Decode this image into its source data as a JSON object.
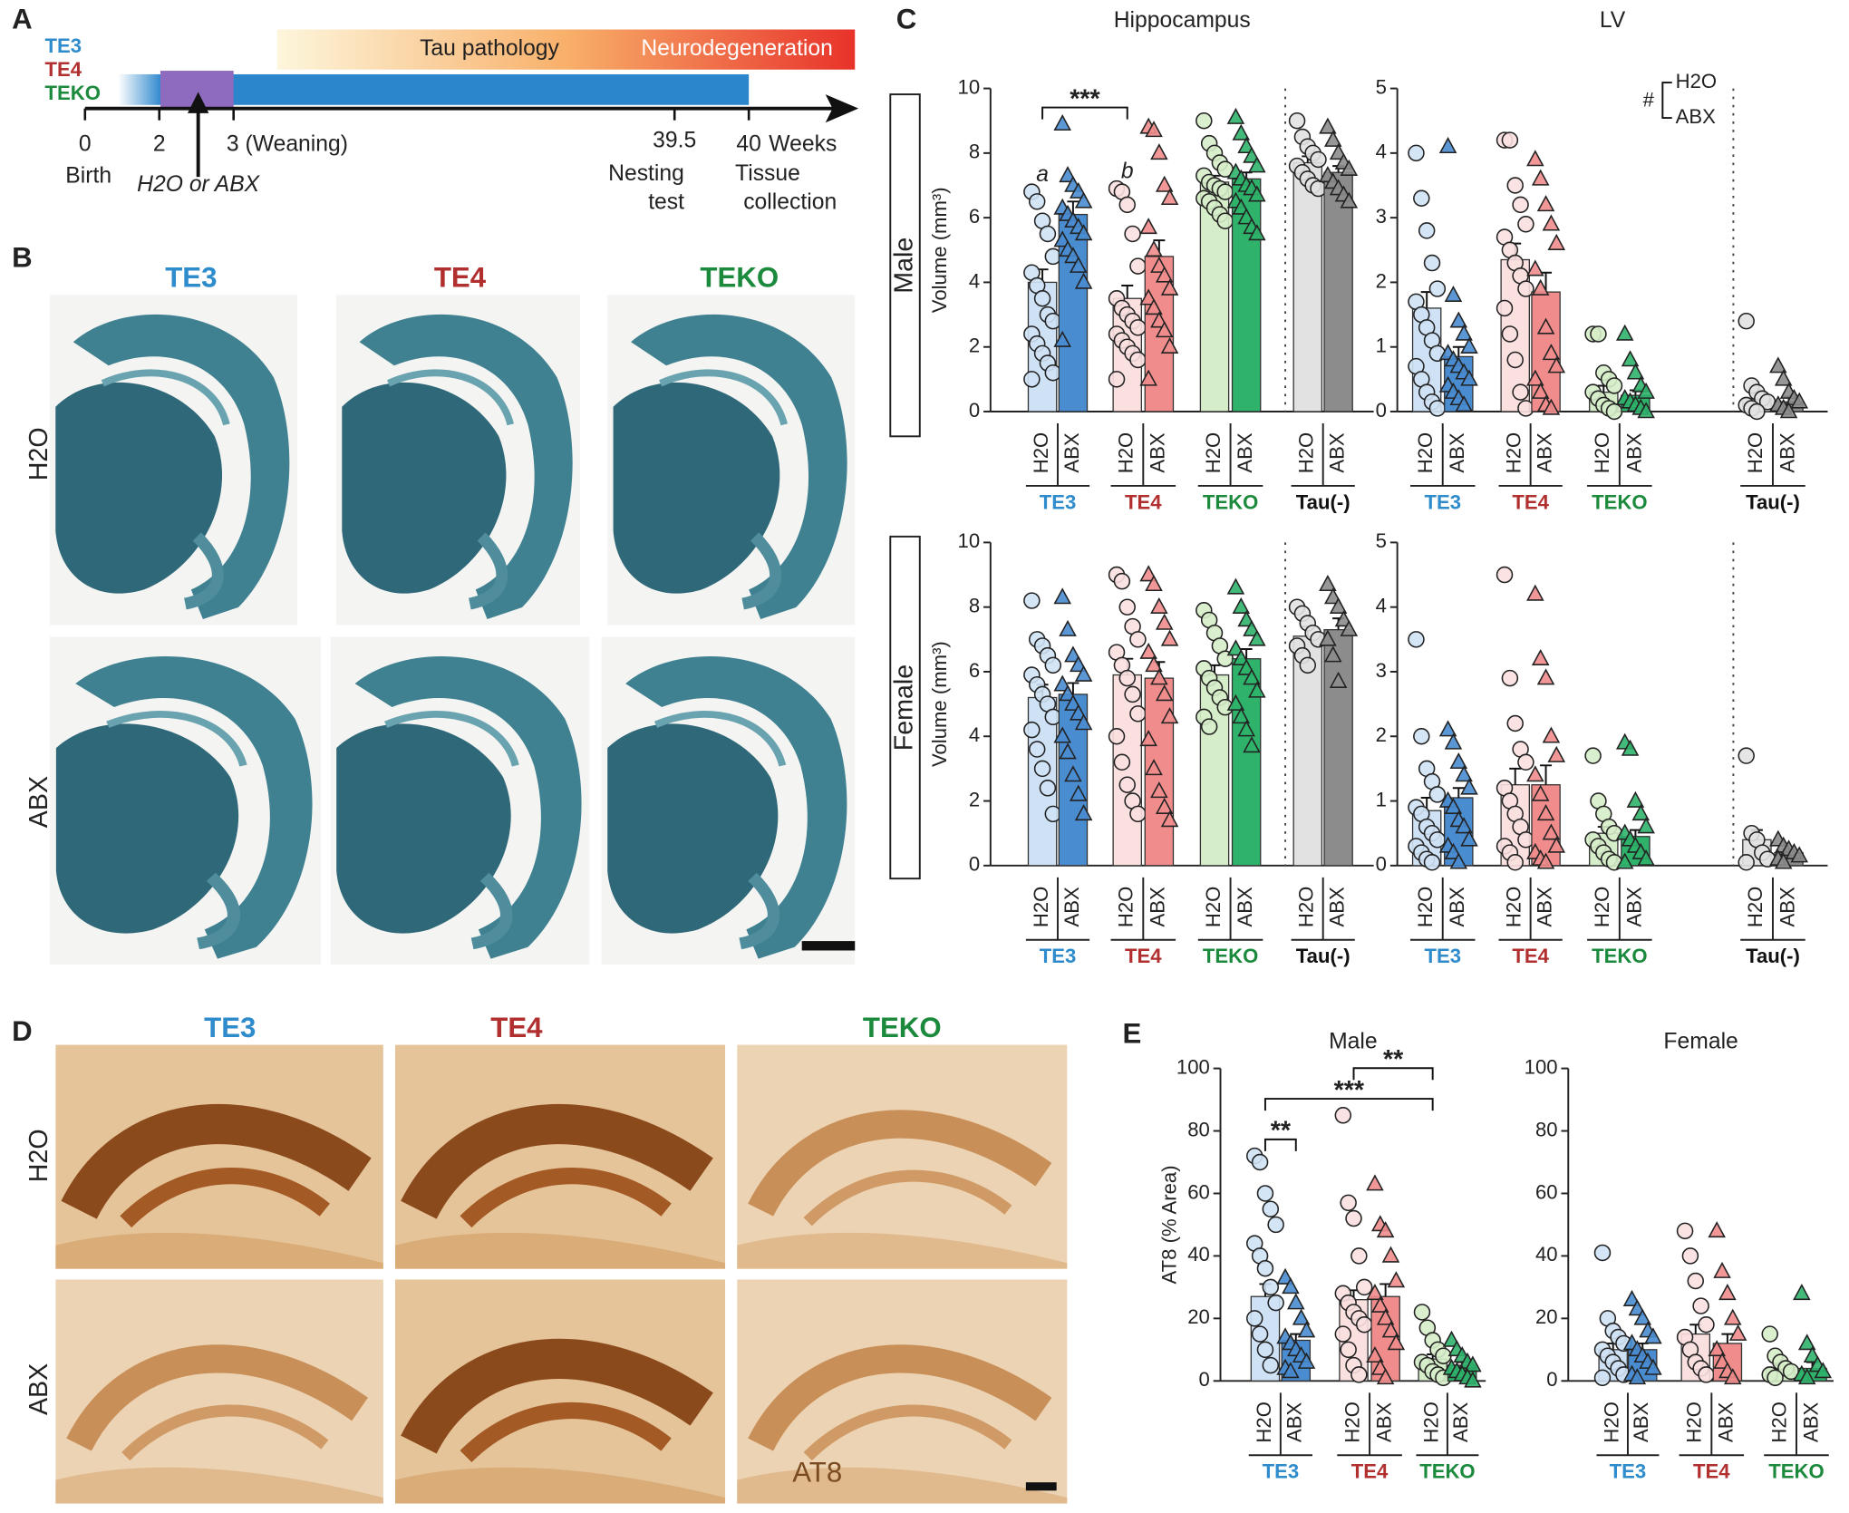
{
  "panel_labels": [
    "A",
    "B",
    "C",
    "D",
    "E"
  ],
  "timeline": {
    "genotypes": [
      "TE3",
      "TE4",
      "TEKO"
    ],
    "phases": [
      "Tau pathology",
      "Neurodegeneration"
    ],
    "ticks": [
      "0",
      "2",
      "3 (Weaning)",
      "39.5",
      "40"
    ],
    "unit": "Weeks",
    "events": [
      "Birth",
      "H2O or ABX",
      "Nesting",
      "test",
      "Tissue",
      "collection"
    ]
  },
  "panel_b": {
    "columns": [
      "TE3",
      "TE4",
      "TEKO"
    ],
    "rows": [
      "H2O",
      "ABX"
    ]
  },
  "panel_c": {
    "rows": [
      "Male",
      "Female"
    ]
  },
  "panel_d": {
    "columns": [
      "TE3",
      "TE4",
      "TEKO"
    ],
    "rows": [
      "H2O",
      "ABX"
    ],
    "stain": "AT8"
  },
  "chart_data": [
    {
      "type": "bar",
      "title": "Hippocampus",
      "ylabel": "Volume (mm³)",
      "ylim": [
        0,
        10
      ],
      "yticks": [
        0,
        2,
        4,
        6,
        8,
        10
      ],
      "categories": [
        "H2O",
        "ABX",
        "H2O",
        "ABX",
        "H2O",
        "ABX",
        "H2O",
        "ABX"
      ],
      "groups": [
        "TE3",
        "TE4",
        "TEKO",
        "Tau(-)"
      ],
      "group_colors": [
        "#2e8bcc",
        "#b22f2f",
        "#1c8a3c",
        "#111111"
      ],
      "colors": [
        "#cfe2f5",
        "#4a8cd0",
        "#fbe0e0",
        "#f08c8c",
        "#d6edc9",
        "#2fb36b",
        "#e2e2e2",
        "#8c8c8c"
      ],
      "markers": [
        "circle",
        "triangle",
        "circle",
        "triangle",
        "circle",
        "triangle",
        "circle",
        "triangle"
      ],
      "values": [
        4.0,
        6.1,
        3.5,
        4.8,
        7.1,
        7.2,
        7.7,
        7.4
      ],
      "errors": [
        0.4,
        0.4,
        0.4,
        0.5,
        0.2,
        0.2,
        0.2,
        0.2
      ],
      "points": [
        [
          6.8,
          6.5,
          5.9,
          5.5,
          4.8,
          4.3,
          3.9,
          3.5,
          3.0,
          2.8,
          2.4,
          2.1,
          1.8,
          1.5,
          1.2,
          1.0
        ],
        [
          8.9,
          7.3,
          7.0,
          6.8,
          6.5,
          6.3,
          6.1,
          5.9,
          5.7,
          5.5,
          5.3,
          5.0,
          4.8,
          4.5,
          4.0,
          2.2
        ],
        [
          6.9,
          6.8,
          6.4,
          5.5,
          4.5,
          3.5,
          3.2,
          3.0,
          2.8,
          2.6,
          2.4,
          2.2,
          2.0,
          1.8,
          1.6,
          1.0
        ],
        [
          8.8,
          8.7,
          8.0,
          7.0,
          6.6,
          5.7,
          5.0,
          4.5,
          4.2,
          3.8,
          3.5,
          3.2,
          2.8,
          2.5,
          2.0,
          1.0
        ],
        [
          9.0,
          8.3,
          8.0,
          7.7,
          7.5,
          7.3,
          7.1,
          7.0,
          6.9,
          6.8,
          6.6,
          6.5,
          6.3,
          6.1,
          5.9
        ],
        [
          9.1,
          8.6,
          8.2,
          7.9,
          7.6,
          7.4,
          7.2,
          7.0,
          6.9,
          6.7,
          6.5,
          6.3,
          6.0,
          5.7,
          5.5
        ],
        [
          9.0,
          8.5,
          8.2,
          8.0,
          7.8,
          7.6,
          7.4,
          7.2,
          7.0,
          6.9
        ],
        [
          8.8,
          8.4,
          8.0,
          7.7,
          7.5,
          7.3,
          7.1,
          6.9,
          6.7,
          6.5
        ]
      ],
      "annotations": [
        {
          "text": "a",
          "bars": [
            0
          ]
        },
        {
          "text": "b",
          "bars": [
            2
          ]
        },
        {
          "text": "***",
          "bars": [
            0,
            2
          ]
        }
      ]
    },
    {
      "type": "bar",
      "title": "LV",
      "ylim": [
        0,
        5
      ],
      "yticks": [
        0,
        1,
        2,
        3,
        4,
        5
      ],
      "categories": [
        "H2O",
        "ABX",
        "H2O",
        "ABX",
        "H2O",
        "ABX",
        "H2O",
        "ABX"
      ],
      "groups": [
        "TE3",
        "TE4",
        "TEKO",
        "Tau(-)"
      ],
      "group_colors": [
        "#2e8bcc",
        "#b22f2f",
        "#1c8a3c",
        "#111111"
      ],
      "colors": [
        "#cfe2f5",
        "#4a8cd0",
        "#fbe0e0",
        "#f08c8c",
        "#d6edc9",
        "#2fb36b",
        "#e2e2e2",
        "#8c8c8c"
      ],
      "markers": [
        "circle",
        "triangle",
        "circle",
        "triangle",
        "circle",
        "triangle",
        "circle",
        "triangle"
      ],
      "values": [
        1.6,
        0.85,
        2.35,
        1.85,
        0.3,
        0.25,
        0.2,
        0.15
      ],
      "errors": [
        0.25,
        0.15,
        0.25,
        0.3,
        0.1,
        0.08,
        0.1,
        0.08
      ],
      "points": [
        [
          4.0,
          3.3,
          2.8,
          2.3,
          1.9,
          1.7,
          1.5,
          1.3,
          1.1,
          0.9,
          0.7,
          0.5,
          0.3,
          0.15,
          0.05
        ],
        [
          4.1,
          1.8,
          1.4,
          1.2,
          1.0,
          0.9,
          0.8,
          0.7,
          0.6,
          0.5,
          0.4,
          0.3,
          0.2,
          0.1
        ],
        [
          4.2,
          4.2,
          3.5,
          3.2,
          2.9,
          2.7,
          2.5,
          2.3,
          2.1,
          1.9,
          1.6,
          1.2,
          0.8,
          0.3,
          0.05
        ],
        [
          3.9,
          3.6,
          3.2,
          2.9,
          2.6,
          2.2,
          1.9,
          1.3,
          0.9,
          0.7,
          0.5,
          0.3,
          0.1,
          0.05
        ],
        [
          1.2,
          1.2,
          0.6,
          0.5,
          0.4,
          0.3,
          0.2,
          0.1,
          0.05,
          0.0
        ],
        [
          1.2,
          0.8,
          0.6,
          0.4,
          0.3,
          0.2,
          0.15,
          0.1,
          0.05,
          0.0
        ],
        [
          1.4,
          0.4,
          0.3,
          0.2,
          0.15,
          0.1,
          0.05,
          0.0
        ],
        [
          0.7,
          0.5,
          0.3,
          0.2,
          0.15,
          0.1,
          0.05,
          0.0
        ]
      ],
      "legend_note": {
        "symbol": "#",
        "items": [
          "H2O",
          "ABX"
        ]
      }
    },
    {
      "type": "bar",
      "ylabel": "Volume (mm³)",
      "ylim": [
        0,
        10
      ],
      "yticks": [
        0,
        2,
        4,
        6,
        8,
        10
      ],
      "categories": [
        "H2O",
        "ABX",
        "H2O",
        "ABX",
        "H2O",
        "ABX",
        "H2O",
        "ABX"
      ],
      "groups": [
        "TE3",
        "TE4",
        "TEKO",
        "Tau(-)"
      ],
      "group_colors": [
        "#2e8bcc",
        "#b22f2f",
        "#1c8a3c",
        "#111111"
      ],
      "colors": [
        "#cfe2f5",
        "#4a8cd0",
        "#fbe0e0",
        "#f08c8c",
        "#d6edc9",
        "#2fb36b",
        "#e2e2e2",
        "#8c8c8c"
      ],
      "markers": [
        "circle",
        "triangle",
        "circle",
        "triangle",
        "circle",
        "triangle",
        "circle",
        "triangle"
      ],
      "values": [
        5.2,
        5.3,
        5.9,
        5.8,
        5.9,
        6.4,
        7.1,
        7.3
      ],
      "errors": [
        0.4,
        0.35,
        0.5,
        0.5,
        0.3,
        0.3,
        0.3,
        0.35
      ],
      "points": [
        [
          8.2,
          7.0,
          6.8,
          6.5,
          6.2,
          5.9,
          5.6,
          5.3,
          5.0,
          4.6,
          4.2,
          3.6,
          3.0,
          2.4,
          1.6
        ],
        [
          8.3,
          7.3,
          6.5,
          6.2,
          5.9,
          5.6,
          5.3,
          5.0,
          4.7,
          4.4,
          4.0,
          3.5,
          2.8,
          2.2,
          1.6
        ],
        [
          9.0,
          8.8,
          8.0,
          7.4,
          7.0,
          6.6,
          6.2,
          5.8,
          5.3,
          4.7,
          4.0,
          3.2,
          2.5,
          2.0,
          1.6
        ],
        [
          9.0,
          8.7,
          8.0,
          7.5,
          7.0,
          6.6,
          6.2,
          5.8,
          5.3,
          4.6,
          3.9,
          3.0,
          2.3,
          1.8,
          1.4
        ],
        [
          7.9,
          7.6,
          7.2,
          6.8,
          6.4,
          6.1,
          5.8,
          5.5,
          5.2,
          4.9,
          4.6,
          4.3
        ],
        [
          8.6,
          8.0,
          7.6,
          7.3,
          7.0,
          6.7,
          6.4,
          6.1,
          5.8,
          5.4,
          5.0,
          4.6,
          4.2,
          3.7
        ],
        [
          8.0,
          7.8,
          7.5,
          7.2,
          7.0,
          6.8,
          6.5,
          6.2
        ],
        [
          8.7,
          8.3,
          8.0,
          7.6,
          7.3,
          7.0,
          6.5,
          5.7
        ]
      ]
    },
    {
      "type": "bar",
      "ylim": [
        0,
        5
      ],
      "yticks": [
        0,
        1,
        2,
        3,
        4,
        5
      ],
      "categories": [
        "H2O",
        "ABX",
        "H2O",
        "ABX",
        "H2O",
        "ABX",
        "H2O",
        "ABX"
      ],
      "groups": [
        "TE3",
        "TE4",
        "TEKO",
        "Tau(-)"
      ],
      "group_colors": [
        "#2e8bcc",
        "#b22f2f",
        "#1c8a3c",
        "#111111"
      ],
      "colors": [
        "#cfe2f5",
        "#4a8cd0",
        "#fbe0e0",
        "#f08c8c",
        "#d6edc9",
        "#2fb36b",
        "#e2e2e2",
        "#8c8c8c"
      ],
      "markers": [
        "circle",
        "triangle",
        "circle",
        "triangle",
        "circle",
        "triangle",
        "circle",
        "triangle"
      ],
      "values": [
        0.85,
        1.05,
        1.25,
        1.25,
        0.5,
        0.45,
        0.4,
        0.2
      ],
      "errors": [
        0.2,
        0.15,
        0.25,
        0.3,
        0.1,
        0.1,
        0.15,
        0.05
      ],
      "points": [
        [
          3.5,
          2.0,
          1.5,
          1.3,
          1.1,
          0.9,
          0.8,
          0.6,
          0.5,
          0.4,
          0.3,
          0.2,
          0.1,
          0.05
        ],
        [
          2.1,
          1.9,
          1.6,
          1.4,
          1.2,
          1.0,
          0.9,
          0.7,
          0.6,
          0.4,
          0.3,
          0.2,
          0.05
        ],
        [
          4.5,
          2.9,
          2.2,
          1.8,
          1.6,
          1.2,
          1.0,
          0.8,
          0.6,
          0.4,
          0.3,
          0.2,
          0.05
        ],
        [
          4.2,
          3.2,
          2.9,
          2.0,
          1.7,
          1.4,
          1.1,
          0.8,
          0.5,
          0.3,
          0.2,
          0.1,
          0.05
        ],
        [
          1.7,
          1.0,
          0.8,
          0.6,
          0.5,
          0.4,
          0.3,
          0.2,
          0.1,
          0.05
        ],
        [
          1.9,
          1.8,
          1.0,
          0.8,
          0.6,
          0.5,
          0.4,
          0.3,
          0.2,
          0.1,
          0.05
        ],
        [
          1.7,
          0.5,
          0.4,
          0.2,
          0.1,
          0.05
        ],
        [
          0.4,
          0.3,
          0.25,
          0.2,
          0.15,
          0.1,
          0.05
        ]
      ]
    },
    {
      "type": "bar",
      "title": "Male",
      "ylabel": "AT8 (% Area)",
      "ylim": [
        0,
        100
      ],
      "yticks": [
        0,
        20,
        40,
        60,
        80,
        100
      ],
      "categories": [
        "H2O",
        "ABX",
        "H2O",
        "ABX",
        "H2O",
        "ABX"
      ],
      "groups": [
        "TE3",
        "TE4",
        "TEKO"
      ],
      "group_colors": [
        "#2e8bcc",
        "#b22f2f",
        "#1c8a3c"
      ],
      "colors": [
        "#cfe2f5",
        "#4a8cd0",
        "#fbe0e0",
        "#f08c8c",
        "#d6edc9",
        "#2fb36b"
      ],
      "markers": [
        "circle",
        "triangle",
        "circle",
        "triangle",
        "circle",
        "triangle"
      ],
      "values": [
        27,
        13,
        26,
        27,
        7,
        5
      ],
      "errors": [
        4,
        2,
        3,
        4,
        1.5,
        1
      ],
      "points": [
        [
          72,
          70,
          60,
          55,
          50,
          44,
          40,
          36,
          30,
          25,
          20,
          15,
          10,
          5
        ],
        [
          33,
          30,
          25,
          20,
          16,
          14,
          12,
          10,
          8,
          6,
          4,
          3
        ],
        [
          85,
          57,
          52,
          40,
          30,
          28,
          25,
          22,
          20,
          18,
          15,
          10,
          5,
          2
        ],
        [
          63,
          50,
          48,
          40,
          32,
          28,
          24,
          20,
          16,
          12,
          8,
          4,
          1
        ],
        [
          22,
          17,
          13,
          10,
          8,
          6,
          5,
          3,
          2,
          1
        ],
        [
          13,
          10,
          8,
          6,
          5,
          4,
          3,
          2,
          1,
          0
        ]
      ],
      "annotations": [
        {
          "text": "**",
          "bars": [
            0,
            1
          ]
        },
        {
          "text": "***",
          "bars": [
            0,
            4
          ]
        },
        {
          "text": "**",
          "bars": [
            2,
            4
          ]
        }
      ]
    },
    {
      "type": "bar",
      "title": "Female",
      "ylim": [
        0,
        100
      ],
      "yticks": [
        0,
        20,
        40,
        60,
        80,
        100
      ],
      "categories": [
        "H2O",
        "ABX",
        "H2O",
        "ABX",
        "H2O",
        "ABX"
      ],
      "groups": [
        "TE3",
        "TE4",
        "TEKO"
      ],
      "group_colors": [
        "#2e8bcc",
        "#b22f2f",
        "#1c8a3c"
      ],
      "colors": [
        "#cfe2f5",
        "#4a8cd0",
        "#fbe0e0",
        "#f08c8c",
        "#d6edc9",
        "#2fb36b"
      ],
      "markers": [
        "circle",
        "triangle",
        "circle",
        "triangle",
        "circle",
        "triangle"
      ],
      "values": [
        10,
        10,
        15,
        12,
        4,
        4
      ],
      "errors": [
        2,
        2,
        3,
        3,
        1,
        2
      ],
      "points": [
        [
          41,
          20,
          16,
          14,
          12,
          10,
          8,
          6,
          4,
          2,
          1
        ],
        [
          26,
          23,
          20,
          16,
          14,
          12,
          10,
          8,
          6,
          4,
          2,
          1
        ],
        [
          48,
          40,
          32,
          24,
          18,
          14,
          10,
          6,
          4,
          2
        ],
        [
          48,
          35,
          28,
          20,
          15,
          10,
          6,
          3,
          1
        ],
        [
          15,
          8,
          6,
          4,
          3,
          2,
          1
        ],
        [
          28,
          12,
          8,
          5,
          3,
          2,
          1
        ]
      ]
    }
  ]
}
